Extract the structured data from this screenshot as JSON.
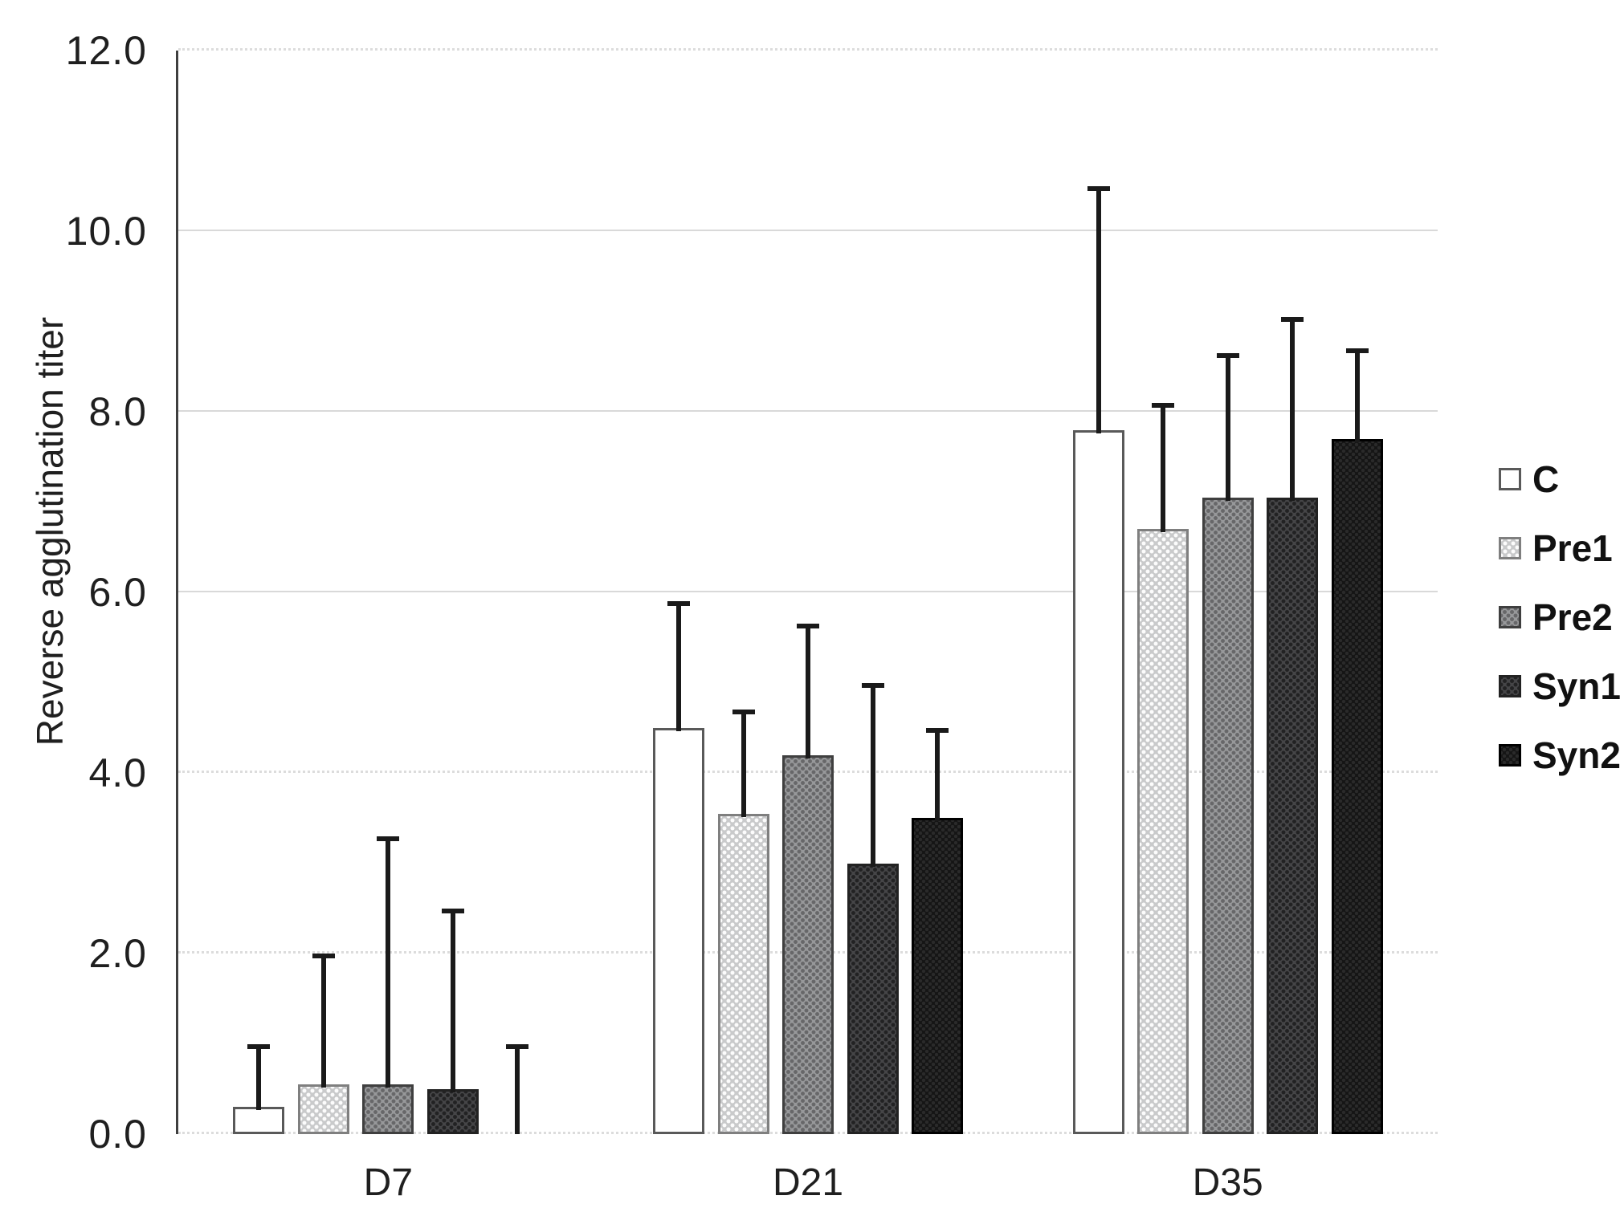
{
  "chart_data": {
    "type": "bar",
    "title": "",
    "categories": [
      "D7",
      "D21",
      "D35"
    ],
    "series": [
      {
        "name": "C",
        "color": "#ffffff",
        "values": [
          0.3,
          4.5,
          7.8
        ],
        "error_bar_top": [
          1.0,
          5.9,
          10.5
        ]
      },
      {
        "name": "Pre1",
        "color": "#c9cacb",
        "values": [
          0.55,
          3.55,
          6.7
        ],
        "error_bar_top": [
          2.0,
          4.7,
          8.1
        ]
      },
      {
        "name": "Pre2",
        "color": "#97989a",
        "values": [
          0.55,
          4.2,
          7.05
        ],
        "error_bar_top": [
          3.3,
          5.65,
          8.65
        ]
      },
      {
        "name": "Syn1",
        "color": "#454547",
        "values": [
          0.5,
          3.0,
          7.05
        ],
        "error_bar_top": [
          2.5,
          5.0,
          9.05
        ]
      },
      {
        "name": "Syn2",
        "color": "#151515",
        "values": [
          0.0,
          3.5,
          7.7
        ],
        "error_bar_top": [
          1.0,
          4.5,
          8.7
        ]
      }
    ],
    "xlabel": "",
    "ylabel": "Reverse agglutination titer",
    "ylim": [
      0,
      12
    ],
    "ytick_step": 2,
    "ytick_labels": [
      "0.0",
      "2.0",
      "4.0",
      "6.0",
      "8.0",
      "10.0",
      "12.0"
    ],
    "grid": true,
    "legend_position": "right",
    "legend": [
      "C",
      "Pre1",
      "Pre2",
      "Syn1",
      "Syn2"
    ],
    "error_bar_color": "#1a1a1a",
    "gridline_color": "#d9d9d9",
    "axis_color": "#3f3f3f"
  }
}
